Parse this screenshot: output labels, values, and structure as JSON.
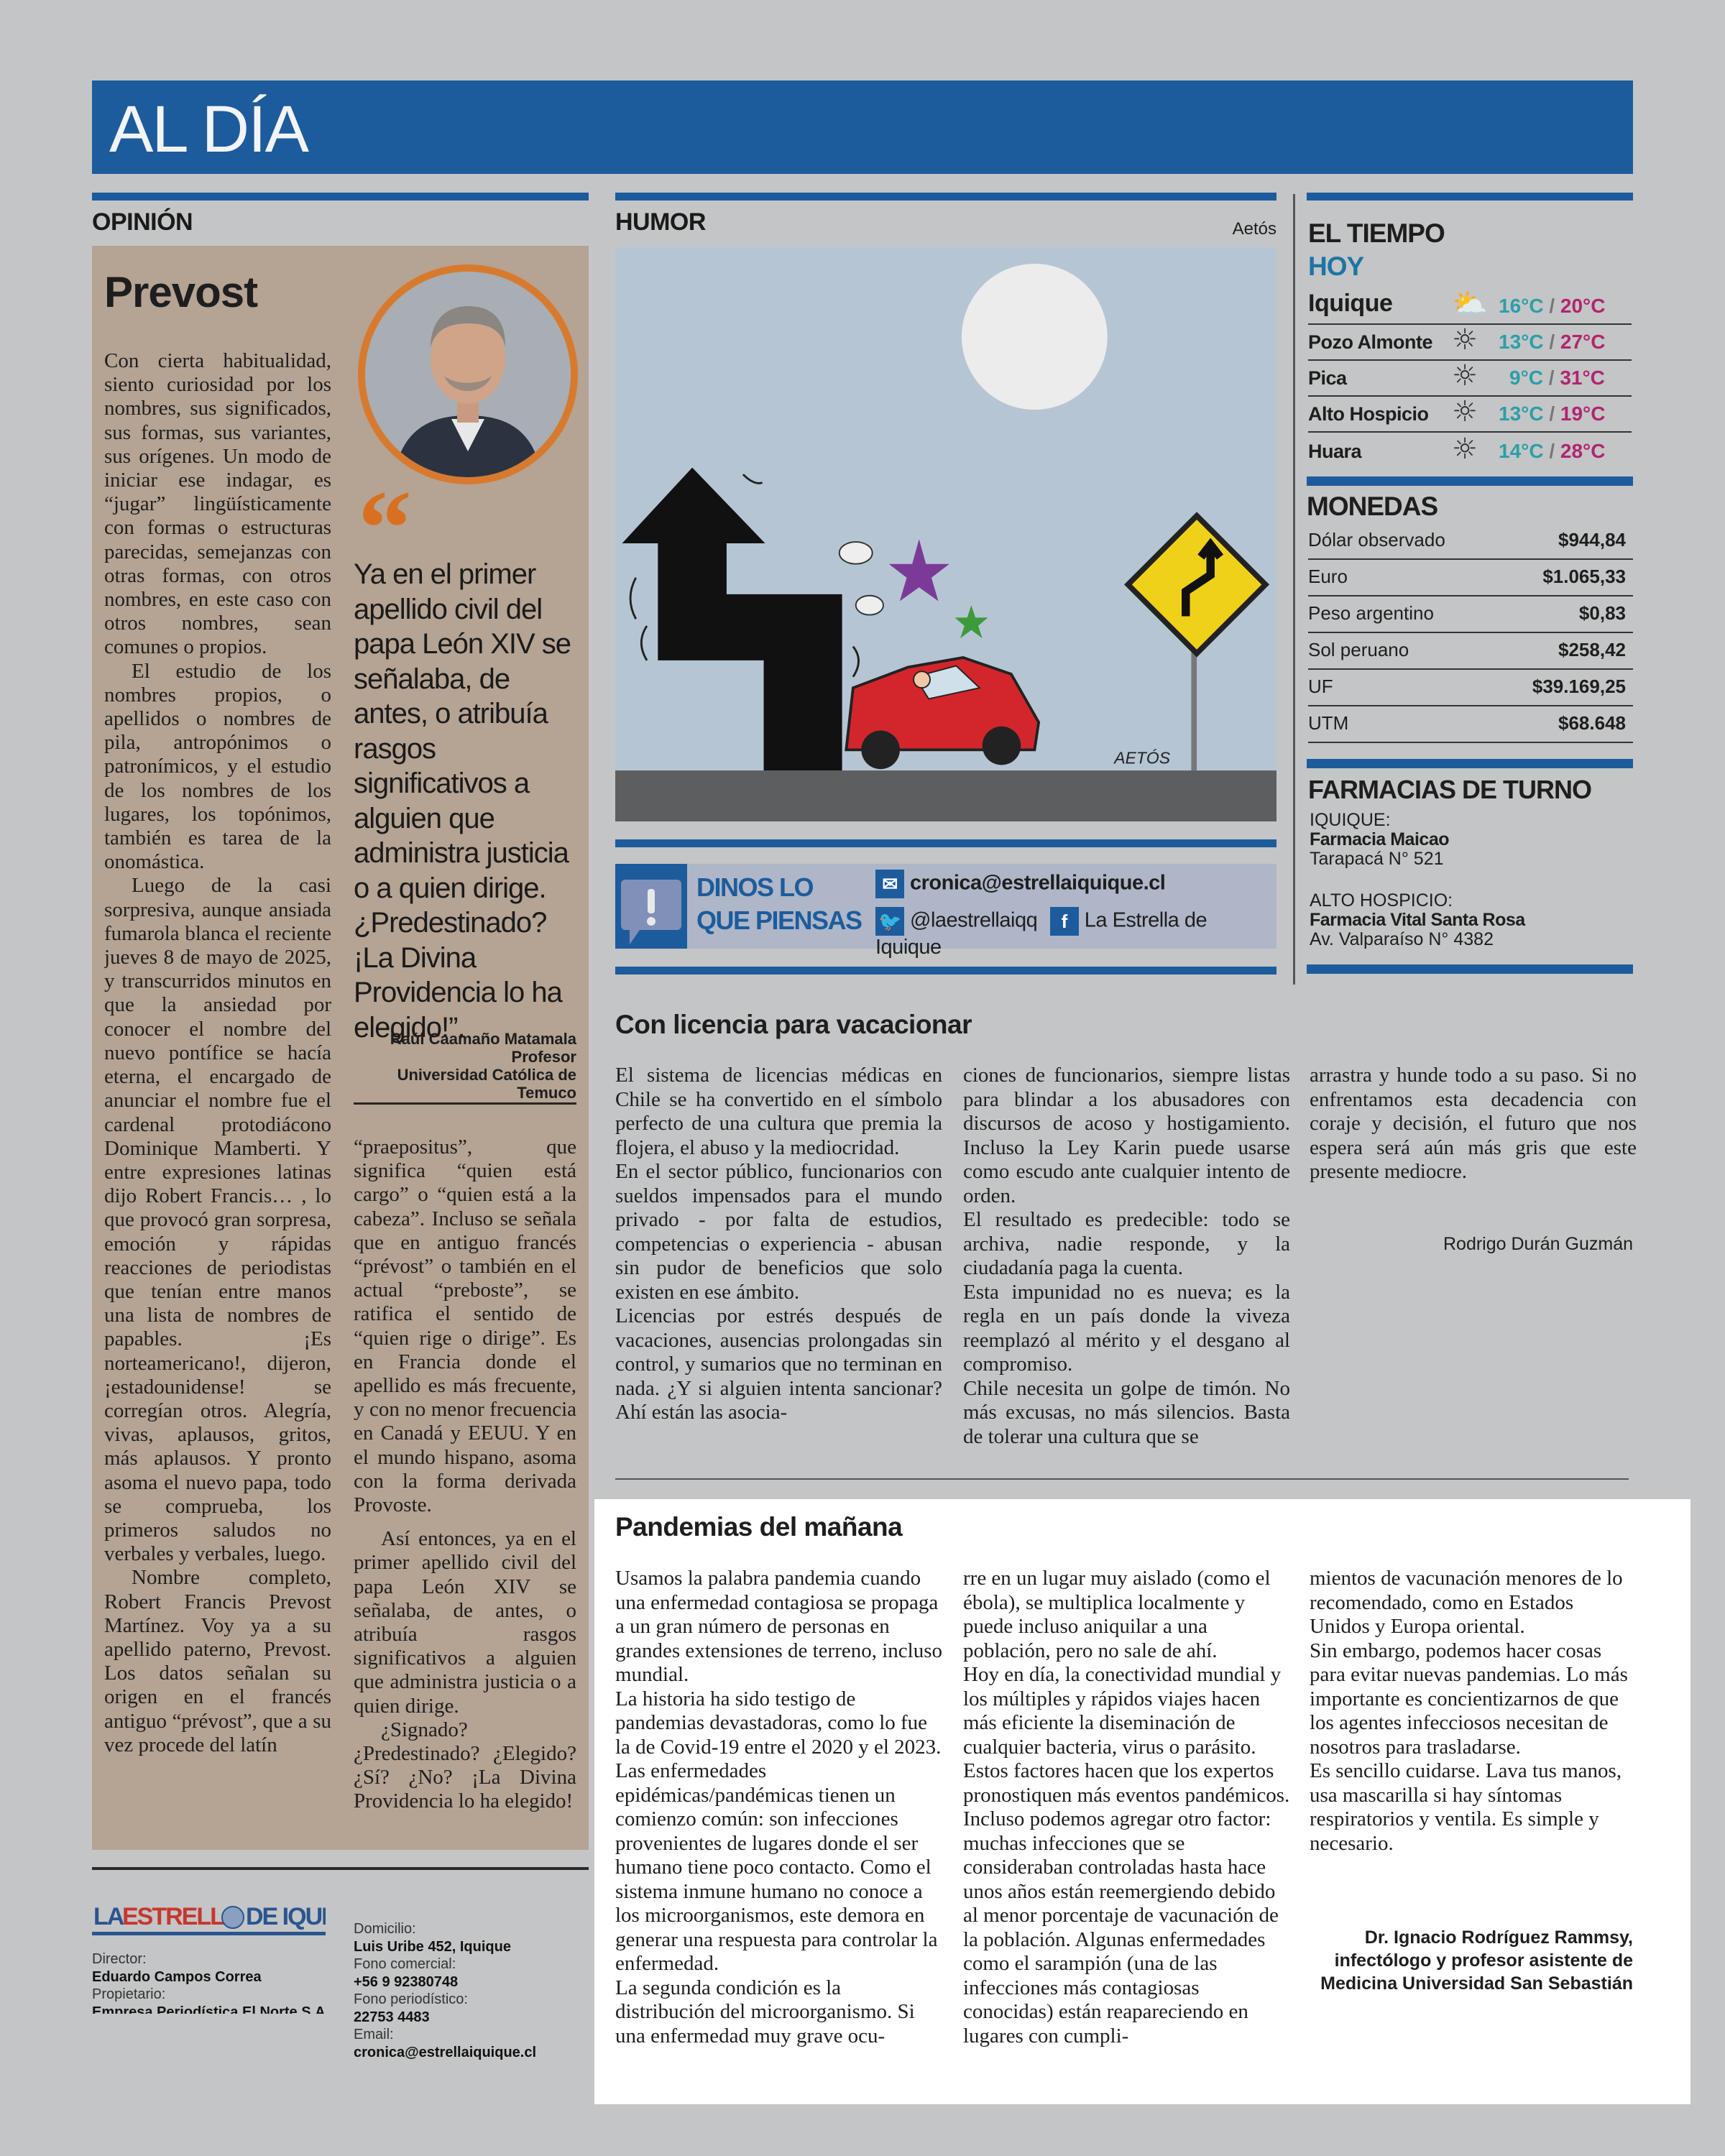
{
  "section": {
    "title": "AL DÍA"
  },
  "colors": {
    "brand_blue": "#1d5c9c",
    "accent_orange": "#d8701f",
    "temp_low": "#2b9fa9",
    "temp_high": "#b1256f",
    "opinion_bg": "#b5a393"
  },
  "opinion": {
    "header": "OPINIÓN",
    "title": "Prevost",
    "quote_mark": "“",
    "quote": "Ya en el primer apellido civil del papa León XIV se señalaba, de antes, o atribuía rasgos significativos a alguien que administra justicia o a quien dirige. ¿Predestinado? ¡La Divina Providencia lo ha elegido!”.",
    "author": {
      "name": "Raúl Caamaño Matamala",
      "role": "Profesor",
      "institution": "Universidad Católica de Temuco"
    },
    "col1": [
      "Con cierta habitualidad, siento curiosidad por los nombres, sus significados, sus formas, sus variantes, sus orígenes. Un modo de iniciar ese indagar, es “jugar” lingüísticamente con formas o estructuras parecidas, semejanzas con otras formas, con otros nombres, en este caso con otros nombres, sean comunes o propios.",
      "El estudio de los nombres propios, o apellidos o nombres de pila, antropónimos o patronímicos, y el estudio de los nombres de los lugares, los topónimos, también es tarea de la onomástica.",
      "Luego de la casi sorpresiva, aunque ansiada fumarola blanca el reciente jueves 8 de mayo de 2025, y transcurridos minutos en que la ansiedad por conocer el nombre del nuevo pontífice se hacía eterna, el encargado de anunciar el nombre fue el cardenal protodiácono Dominique Mamberti. Y entre expresiones latinas dijo Robert Francis… , lo que provocó gran sorpresa, emoción y rápidas reacciones de periodistas que tenían entre manos una lista de nombres de papables. ¡Es norteamericano!, dijeron, ¡estadounidense! se corregían otros. Alegría, vivas, aplausos, gritos, más aplausos. Y pronto asoma el nuevo papa, todo se comprueba, los primeros saludos no verbales y verbales, luego.",
      "Nombre completo, Robert Francis Prevost Martínez. Voy ya a su apellido paterno, Prevost. Los datos señalan su origen en el francés antiguo “prévost”, que a su vez procede del latín"
    ],
    "col2": [
      "“praepositus”, que significa “quien está cargo” o “quien está a la cabeza”. Incluso se señala que en antiguo francés “prévost” o también en el actual “preboste”, se ratifica el sentido de “quien rige o dirige”. Es en Francia donde el apellido es más frecuente, y con no menor frecuencia en Canadá y EEUU. Y en el mundo hispano, asoma con la forma derivada Provoste.",
      "Así entonces, ya en el primer apellido civil del papa León XIV se señalaba, de antes, o atribuía rasgos significativos a alguien que administra justicia o a quien dirige.",
      "¿Signado? ¿Predestinado? ¿Elegido? ¿Sí? ¿No? ¡La Divina Providencia lo ha elegido!"
    ]
  },
  "humor": {
    "header": "HUMOR",
    "credit": "Aetós",
    "cartoon_signature": "AETÓS"
  },
  "contact": {
    "title_line1": "DINOS LO",
    "title_line2": "QUE PIENSAS",
    "email": "cronica@estrellaiquique.cl",
    "twitter": "@laestrellaiqq",
    "facebook": "La Estrella de Iquique",
    "icons": [
      "exclamation-bubble-icon",
      "mail-icon",
      "twitter-icon",
      "facebook-icon"
    ]
  },
  "weather": {
    "header": "EL TIEMPO",
    "day": "HOY",
    "rows": [
      {
        "city": "Iquique",
        "icon": "partly-cloudy-icon",
        "low": "16°C",
        "high": "20°C"
      },
      {
        "city": "Pozo Almonte",
        "icon": "sun-icon",
        "low": "13°C",
        "high": "27°C"
      },
      {
        "city": "Pica",
        "icon": "sun-icon",
        "low": "9°C",
        "high": "31°C"
      },
      {
        "city": "Alto Hospicio",
        "icon": "sun-icon",
        "low": "13°C",
        "high": "19°C"
      },
      {
        "city": "Huara",
        "icon": "sun-icon",
        "low": "14°C",
        "high": "28°C"
      }
    ],
    "separator": "/"
  },
  "currencies": {
    "header": "MONEDAS",
    "rows": [
      {
        "name": "Dólar observado",
        "value": "$944,84"
      },
      {
        "name": "Euro",
        "value": "$1.065,33"
      },
      {
        "name": "Peso argentino",
        "value": "$0,83"
      },
      {
        "name": "Sol peruano",
        "value": "$258,42"
      },
      {
        "name": "UF",
        "value": "$39.169,25"
      },
      {
        "name": "UTM",
        "value": "$68.648"
      }
    ]
  },
  "pharmacies": {
    "header": "FARMACIAS DE TURNO",
    "items": [
      {
        "city": "IQUIQUE:",
        "name": "Farmacia Maicao",
        "address": "Tarapacá N° 521"
      },
      {
        "city": "ALTO HOSPICIO:",
        "name": "Farmacia Vital Santa Rosa",
        "address": "Av. Valparaíso N° 4382"
      }
    ]
  },
  "letter1": {
    "title": "Con licencia para vacacionar",
    "col1": [
      "El sistema de licencias médicas en Chile se ha convertido en el símbolo perfecto de una cultura que premia la flojera, el abuso y la mediocridad.",
      "En el sector público, funcionarios con sueldos impensados para el mundo privado - por falta de estudios, competencias o experiencia - abusan sin pudor de beneficios que solo existen en ese ámbito.",
      "Licencias por estrés después de vacaciones, ausencias prolongadas sin control, y sumarios que no terminan en nada. ¿Y si alguien intenta sancionar? Ahí están las asocia-"
    ],
    "col2": [
      "ciones de funcionarios, siempre listas para blindar a los abusadores con discursos de acoso y hostigamiento. Incluso la Ley Karin puede usarse como escudo ante cualquier intento de orden.",
      "El resultado es predecible: todo se archiva, nadie responde, y la ciudadanía paga la cuenta.",
      "Esta impunidad no es nueva; es la regla en un país donde la viveza reemplazó al mérito y el desgano al compromiso.",
      "Chile necesita un golpe de timón. No más excusas, no más silencios. Basta de tolerar una cultura que se"
    ],
    "col3": [
      "arrastra y hunde todo a su paso. Si no enfrentamos esta decadencia con coraje y decisión, el futuro que nos espera será aún más gris que este presente mediocre."
    ],
    "signature": "Rodrigo Durán Guzmán"
  },
  "letter2": {
    "title": "Pandemias del mañana",
    "col1": [
      "Usamos la palabra pandemia cuando una enfermedad contagiosa se propaga a un gran número de personas en grandes extensiones de terreno, incluso mundial.",
      "La historia ha sido testigo de pandemias devastadoras, como lo fue la de Covid-19 entre el 2020 y el 2023.",
      "Las enfermedades epidémicas/pandémicas tienen un comienzo común: son infecciones provenientes de lugares donde el ser humano tiene poco contacto. Como el sistema inmune humano no conoce a los microorganismos, este demora en generar una respuesta para controlar la enfermedad.",
      "La segunda condición es la distribución del microorganismo. Si una enfermedad muy grave ocu-"
    ],
    "col2": [
      "rre en un lugar muy aislado (como el ébola), se multiplica localmente y puede incluso aniquilar a una población, pero no sale de ahí.",
      "Hoy en día, la conectividad mundial y los múltiples y rápidos viajes hacen más eficiente la diseminación de cualquier bacteria, virus o parásito. Estos factores hacen que los expertos pronostiquen más eventos pandémicos.",
      "Incluso podemos agregar otro factor: muchas infecciones que se consideraban controladas hasta hace unos años están reemergiendo debido al menor porcentaje de vacunación de la población. Algunas enfermedades como el sarampión (una de las infecciones más contagiosas conocidas) están reapareciendo en lugares con cumpli-"
    ],
    "col3": [
      "mientos de vacunación menores de lo recomendado, como en Estados Unidos y Europa oriental.",
      "Sin embargo, podemos hacer cosas para evitar nuevas pandemias. Lo más importante es concientizarnos de que los agentes infecciosos necesitan de nosotros para trasladarse.",
      "Es sencillo cuidarse. Lava tus manos, usa mascarilla si hay síntomas respiratorios y ventila. Es simple y necesario."
    ],
    "signature": [
      "Dr. Ignacio Rodríguez Rammsy,",
      "infectólogo y profesor asistente de",
      "Medicina Universidad San Sebastián"
    ]
  },
  "masthead": {
    "logo_text": "LA ESTRELLA DE IQUIQUE",
    "director_label": "Director:",
    "director": "Eduardo Campos Correa",
    "owner_label": "Propietario:",
    "owner": "Empresa Periodística El Norte S.A.",
    "address_label": "Domicilio:",
    "address": "Luis Uribe 452, Iquique",
    "commercial_phone_label": "Fono comercial:",
    "commercial_phone": "+56 9 92380748",
    "press_phone_label": "Fono periodístico:",
    "press_phone": "22753 4483",
    "email_label": "Email:",
    "email": "cronica@estrellaiquique.cl"
  }
}
